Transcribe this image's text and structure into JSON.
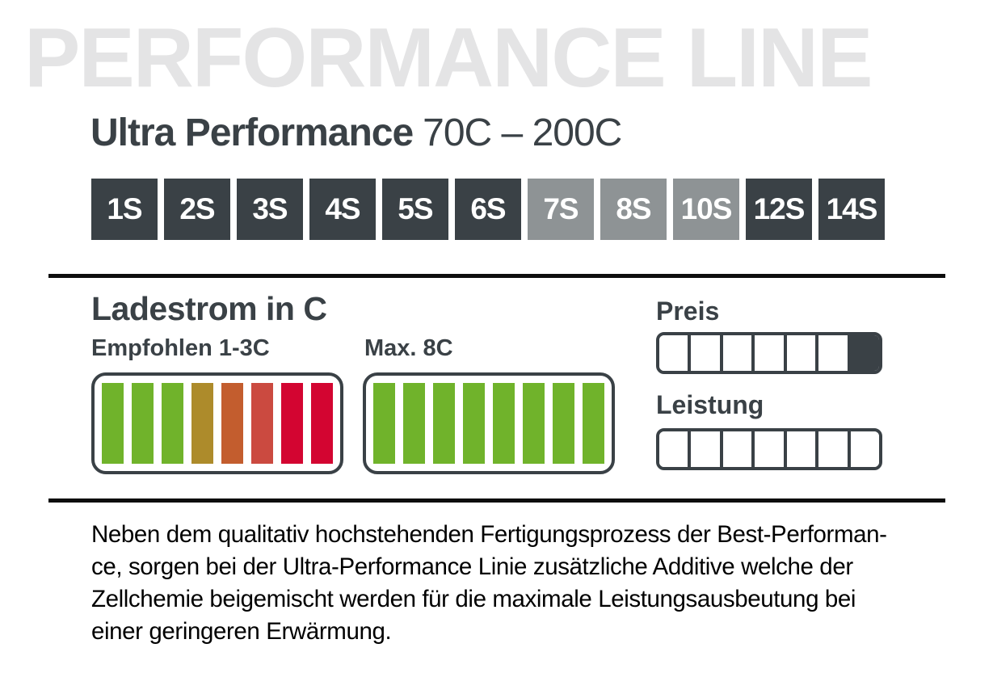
{
  "colors": {
    "dark": "#3a4146",
    "badge_gray": "#8e9395",
    "watermark_gray": "#e4e4e5",
    "divider_black": "#0d0d0d",
    "green": "#70b32b",
    "olive": "#ad8b2b",
    "orange": "#c35d2e",
    "soft_red": "#cb4a40",
    "red": "#d30531",
    "white": "#ffffff",
    "text_black": "#000000"
  },
  "header": {
    "watermark": "PERFORMANCE LINE",
    "product_name": "Ultra Performance",
    "c_range": "70C – 200C"
  },
  "cells": {
    "items": [
      {
        "label": "1S",
        "variant": "dark",
        "color": "#3a4146"
      },
      {
        "label": "2S",
        "variant": "dark",
        "color": "#3a4146"
      },
      {
        "label": "3S",
        "variant": "dark",
        "color": "#3a4146"
      },
      {
        "label": "4S",
        "variant": "dark",
        "color": "#3a4146"
      },
      {
        "label": "5S",
        "variant": "dark",
        "color": "#3a4146"
      },
      {
        "label": "6S",
        "variant": "dark",
        "color": "#3a4146"
      },
      {
        "label": "7S",
        "variant": "gray",
        "color": "#8e9395"
      },
      {
        "label": "8S",
        "variant": "gray",
        "color": "#8e9395"
      },
      {
        "label": "10S",
        "variant": "gray",
        "color": "#8e9395"
      },
      {
        "label": "12S",
        "variant": "dark",
        "color": "#3a4146"
      },
      {
        "label": "14S",
        "variant": "dark",
        "color": "#3a4146"
      }
    ]
  },
  "charge": {
    "title": "Ladestrom in C",
    "recommended": {
      "label": "Empfohlen 1-3C",
      "bars": [
        {
          "name": "green",
          "color": "#70b32b"
        },
        {
          "name": "green",
          "color": "#70b32b"
        },
        {
          "name": "green",
          "color": "#70b32b"
        },
        {
          "name": "olive",
          "color": "#ad8b2b"
        },
        {
          "name": "orange",
          "color": "#c35d2e"
        },
        {
          "name": "soft-red",
          "color": "#cb4a40"
        },
        {
          "name": "red",
          "color": "#d30531"
        },
        {
          "name": "red",
          "color": "#d30531"
        }
      ]
    },
    "max": {
      "label": "Max. 8C",
      "bars": [
        {
          "name": "green",
          "color": "#70b32b"
        },
        {
          "name": "green",
          "color": "#70b32b"
        },
        {
          "name": "green",
          "color": "#70b32b"
        },
        {
          "name": "green",
          "color": "#70b32b"
        },
        {
          "name": "green",
          "color": "#70b32b"
        },
        {
          "name": "green",
          "color": "#70b32b"
        },
        {
          "name": "green",
          "color": "#70b32b"
        },
        {
          "name": "green",
          "color": "#70b32b"
        }
      ]
    }
  },
  "ratings": {
    "price": {
      "label": "Preis",
      "segments": [
        false,
        false,
        false,
        false,
        false,
        false,
        true
      ]
    },
    "performance": {
      "label": "Leistung",
      "segments": [
        false,
        false,
        false,
        false,
        false,
        false,
        false
      ]
    }
  },
  "description": {
    "lines": [
      "Neben dem qualitativ hochstehenden Fertigungsprozess der Best-Performan-",
      "ce, sorgen bei der Ultra-Performance Linie zusätzliche Additive welche der",
      "Zellchemie beigemischt werden für die maximale Leistungsausbeutung bei",
      "einer geringeren Erwärmung."
    ]
  }
}
